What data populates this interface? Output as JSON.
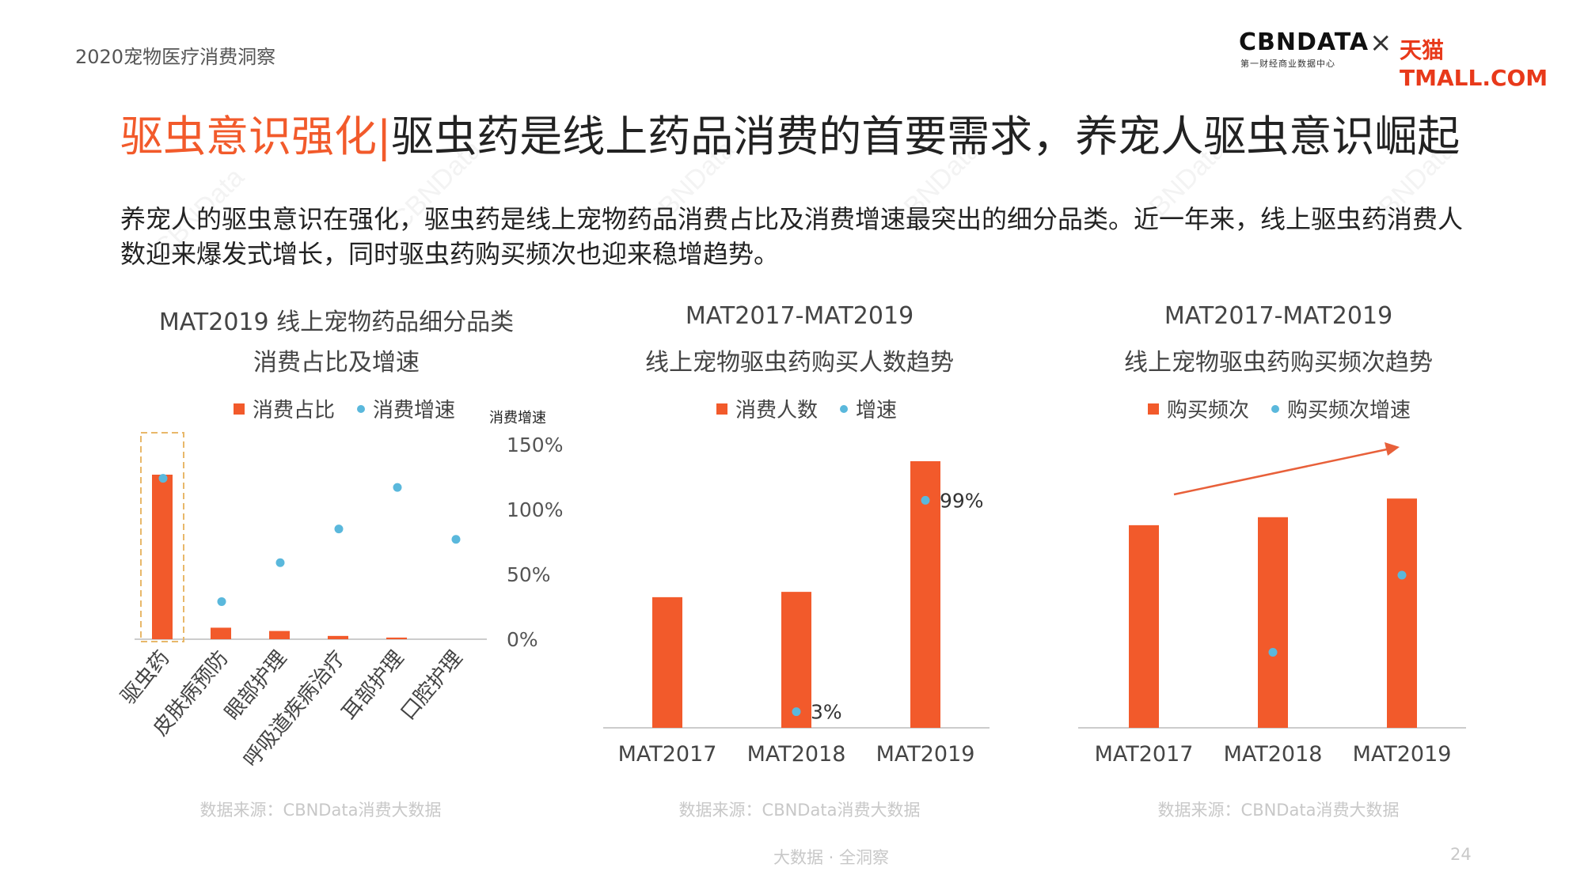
{
  "header": {
    "report_name": "2020宠物医疗消费洞察",
    "logo_cbn": "CBNDATA",
    "logo_cbn_sub": "第一财经商业数据中心",
    "logo_x": "×",
    "logo_tmall": "天猫TMALL.COM"
  },
  "title": {
    "highlight": "驱虫意识强化|",
    "rest": "驱虫药是线上药品消费的首要需求，养宠人驱虫意识崛起"
  },
  "summary": "养宠人的驱虫意识在强化，驱虫药是线上宠物药品消费占比及消费增速最突出的细分品类。近一年来，线上驱虫药消费人数迎来爆发式增长，同时驱虫药购买频次也迎来稳增趋势。",
  "colors": {
    "bar": "#f25a2b",
    "dot": "#5ab8dc",
    "highlight": "#f25a2b",
    "dashbox": "#e8b86a"
  },
  "chart_data": [
    {
      "type": "bar",
      "title_lines": [
        "MAT2019 线上宠物药品细分品类",
        "消费占比及增速"
      ],
      "legend": [
        "消费占比",
        "消费增速"
      ],
      "categories": [
        "驱虫药",
        "皮肤病预防",
        "眼部护理",
        "呼吸道疾病治疗",
        "耳部护理",
        "口腔护理"
      ],
      "series": [
        {
          "name": "消费占比",
          "type": "bar",
          "values": [
            1.0,
            0.07,
            0.05,
            0.02,
            0.01,
            0.0
          ]
        },
        {
          "name": "消费增速",
          "type": "scatter",
          "axis": "right",
          "values": [
            124,
            29,
            59,
            85,
            117,
            77
          ]
        }
      ],
      "right_axis": {
        "label": "消费增速",
        "ticks": [
          "150%",
          "100%",
          "50%",
          "0%"
        ],
        "ylim": [
          0,
          150
        ]
      },
      "highlighted_category": "驱虫药",
      "source": "数据来源：CBNData消费大数据"
    },
    {
      "type": "bar",
      "title_lines": [
        "MAT2017-MAT2019",
        "线上宠物驱虫药购买人数趋势"
      ],
      "legend": [
        "消费人数",
        "增速"
      ],
      "categories": [
        "MAT2017",
        "MAT2018",
        "MAT2019"
      ],
      "series": [
        {
          "name": "消费人数",
          "type": "bar",
          "values": [
            0.49,
            0.51,
            1.0
          ]
        },
        {
          "name": "增速",
          "type": "scatter",
          "values": [
            null,
            3,
            99
          ],
          "labels": [
            null,
            "3%",
            "99%"
          ]
        }
      ],
      "growth_range": [
        0,
        125
      ],
      "source": "数据来源：CBNData消费大数据"
    },
    {
      "type": "bar",
      "title_lines": [
        "MAT2017-MAT2019",
        "线上宠物驱虫药购买频次趋势"
      ],
      "legend": [
        "购买频次",
        "购买频次增速"
      ],
      "categories": [
        "MAT2017",
        "MAT2018",
        "MAT2019"
      ],
      "series": [
        {
          "name": "购买频次",
          "type": "bar",
          "values": [
            0.76,
            0.79,
            0.86
          ]
        },
        {
          "name": "购买频次增速",
          "type": "scatter",
          "values": [
            null,
            30,
            65
          ]
        }
      ],
      "growth_range": [
        0,
        125
      ],
      "trend_arrow": true,
      "source": "数据来源：CBNData消费大数据"
    }
  ],
  "footer": {
    "tagline": "大数据 · 全洞察",
    "page": "24"
  },
  "watermark": "CBNData"
}
